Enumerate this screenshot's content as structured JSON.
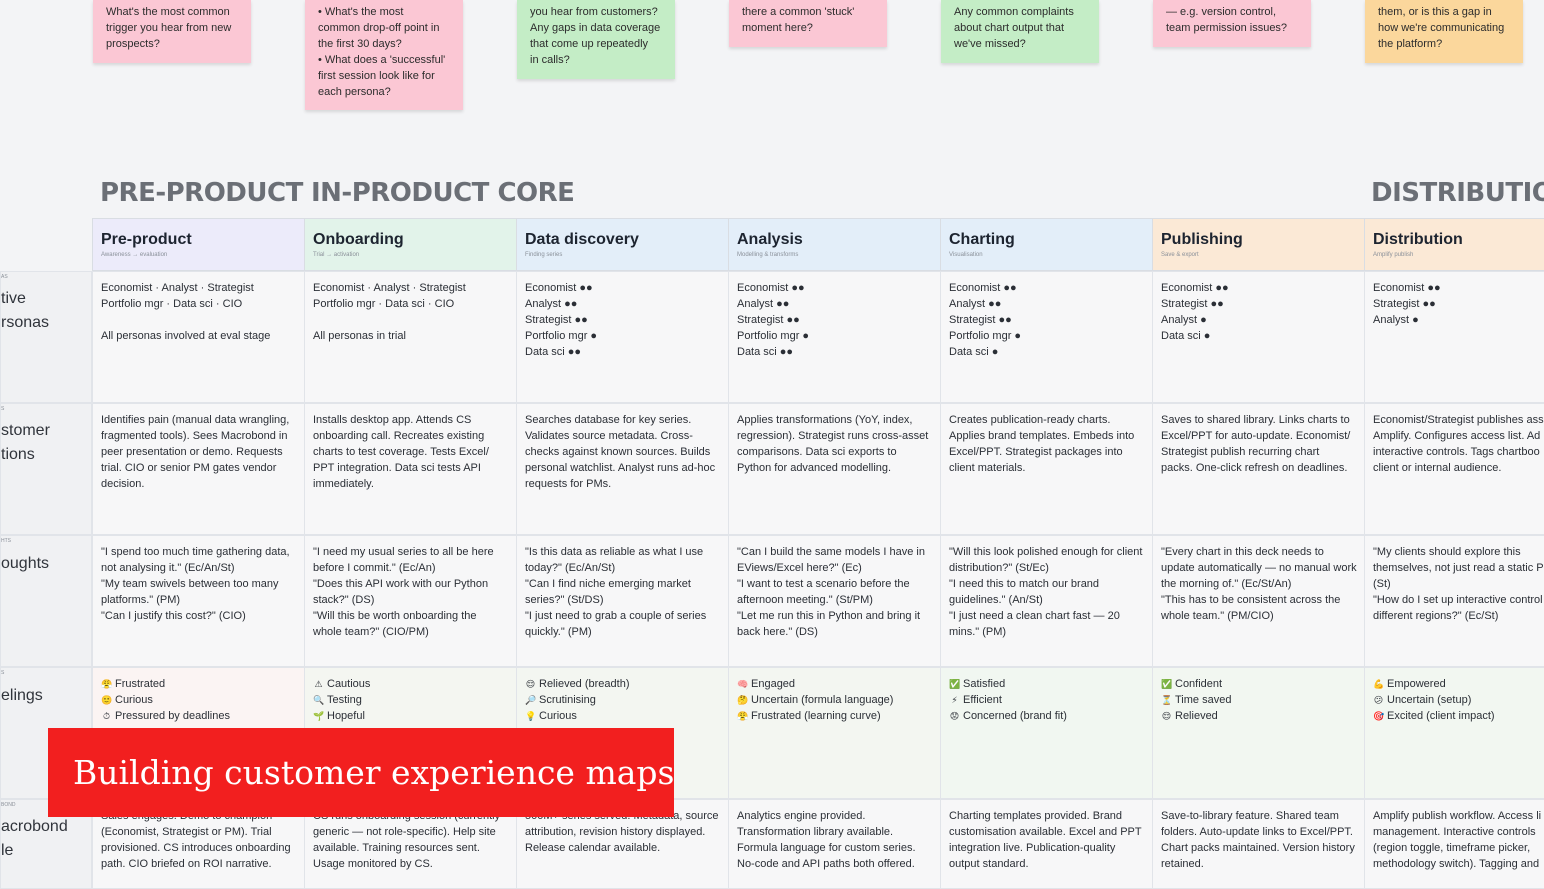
{
  "stickies": [
    {
      "text": "What's the most common\ntrigger you hear from new\nprospects?",
      "color": "#fbc7d4"
    },
    {
      "text": "• What's the most\ncommon drop-off point in\nthe first 30 days?\n• What does a 'successful'\nfirst session look like for\neach persona?",
      "color": "#fbc7d4"
    },
    {
      "text": "you hear from customers?\nAny gaps in data coverage\nthat come up repeatedly\nin calls?",
      "color": "#c4edc6"
    },
    {
      "text": "there a common 'stuck'\nmoment here?",
      "color": "#fbc7d4"
    },
    {
      "text": "Any common complaints\nabout chart output that\nwe've missed?",
      "color": "#c4edc6"
    },
    {
      "text": "— e.g. version control,\nteam permission issues?",
      "color": "#fbc7d4"
    },
    {
      "text": "them, or is this a gap in\nhow we're communicating\nthe platform?",
      "color": "#fbd79c"
    }
  ],
  "sections": {
    "pre_product": "PRE-PRODUCT",
    "in_product": "IN-PRODUCT CORE",
    "distribution": "DISTRIBUTION"
  },
  "columns": [
    {
      "title": "Pre-product",
      "sub": "Awareness → evaluation",
      "bg": "#ecebfa"
    },
    {
      "title": "Onboarding",
      "sub": "Trial → activation",
      "bg": "#e2f3ea"
    },
    {
      "title": "Data discovery",
      "sub": "Finding series",
      "bg": "#e3eef9"
    },
    {
      "title": "Analysis",
      "sub": "Modelling & transforms",
      "bg": "#e3eef9"
    },
    {
      "title": "Charting",
      "sub": "Visualisation",
      "bg": "#e3eef9"
    },
    {
      "title": "Publishing",
      "sub": "Save & export",
      "bg": "#fbe9d6"
    },
    {
      "title": "Distribution",
      "sub": "Amplify publish",
      "bg": "#fbe9d6"
    }
  ],
  "row_labels": [
    {
      "small": "AS",
      "big": "tive\nrsonas"
    },
    {
      "small": "S",
      "big": "stomer\ntions"
    },
    {
      "small": "HTS",
      "big": "oughts"
    },
    {
      "small": "S",
      "big": "elings"
    },
    {
      "small": "BOND",
      "big": "acrobond\nle"
    }
  ],
  "personas": [
    [
      "Economist · Analyst · Strategist",
      "Portfolio mgr · Data sci · CIO",
      "",
      "All personas involved at eval stage"
    ],
    [
      "Economist · Analyst · Strategist",
      "Portfolio mgr · Data sci · CIO",
      "",
      "All personas in trial"
    ],
    [
      "Economist ●●",
      "Analyst ●●",
      "Strategist ●●",
      "Portfolio mgr ●",
      "Data sci ●●"
    ],
    [
      "Economist ●●",
      "Analyst ●●",
      "Strategist ●●",
      "Portfolio mgr ●",
      "Data sci ●●"
    ],
    [
      "Economist ●●",
      "Analyst ●●",
      "Strategist ●●",
      "Portfolio mgr ●",
      "Data sci ●"
    ],
    [
      "Economist ●●",
      "Strategist ●●",
      "Analyst ●",
      "Data sci ●"
    ],
    [
      "Economist ●●",
      "Strategist ●●",
      "Analyst ●"
    ]
  ],
  "actions": [
    [
      "Identifies pain (manual data wrangling,",
      "fragmented tools). Sees Macrobond in",
      "peer presentation or demo. Requests",
      "trial. CIO or senior PM gates vendor",
      "decision."
    ],
    [
      "Installs desktop app. Attends CS",
      "onboarding call. Recreates existing",
      "charts to test coverage. Tests Excel/",
      "PPT integration. Data sci tests API",
      "immediately."
    ],
    [
      "Searches database for key series.",
      "Validates source metadata. Cross-",
      "checks against known sources. Builds",
      "personal watchlist. Analyst runs ad-hoc",
      "requests for PMs."
    ],
    [
      "Applies transformations (YoY, index,",
      "regression). Strategist runs cross-asset",
      "comparisons. Data sci exports to",
      "Python for advanced modelling."
    ],
    [
      "Creates publication-ready charts.",
      "Applies brand templates. Embeds into",
      "Excel/PPT. Strategist packages into",
      "client materials."
    ],
    [
      "Saves to shared library. Links charts to",
      "Excel/PPT for auto-update. Economist/",
      "Strategist publish recurring chart",
      "packs. One-click refresh on deadlines."
    ],
    [
      "Economist/Strategist publishes ass",
      "Amplify. Configures access list. Ad",
      "interactive controls. Tags chartboo",
      "client or internal audience."
    ]
  ],
  "thoughts": [
    [
      "\"I spend too much time gathering data,",
      "not analysing it.\" (Ec/An/St)",
      "\"My team swivels between too many",
      "platforms.\" (PM)",
      "\"Can I justify this cost?\" (CIO)"
    ],
    [
      "\"I need my usual series to all be here",
      "before I commit.\" (Ec/An)",
      "\"Does this API work with our Python",
      "stack?\" (DS)",
      "\"Will this be worth onboarding the",
      "whole team?\" (CIO/PM)"
    ],
    [
      "\"Is this data as reliable as what I use",
      "today?\" (Ec/An/St)",
      "\"Can I find niche emerging market",
      "series?\" (St/DS)",
      "\"I just need to grab a couple of series",
      "quickly.\" (PM)"
    ],
    [
      "\"Can I build the same models I have in",
      "EViews/Excel here?\" (Ec)",
      "\"I want to test a scenario before the",
      "afternoon meeting.\" (St/PM)",
      "\"Let me run this in Python and bring it",
      "back here.\" (DS)"
    ],
    [
      "\"Will this look polished enough for client",
      "distribution?\" (St/Ec)",
      "\"I need this to match our brand",
      "guidelines.\" (An/St)",
      "\"I just need a clean chart fast — 20",
      "mins.\" (PM)"
    ],
    [
      "\"Every chart in this deck needs to",
      "update automatically — no manual work",
      "the morning of.\" (Ec/St/An)",
      "\"This has to be consistent across the",
      "whole team.\" (PM/CIO)"
    ],
    [
      "\"My clients should explore this",
      "themselves, not just read a static P",
      "(St)",
      "\"How do I set up interactive control",
      "different regions?\" (Ec/St)"
    ]
  ],
  "feelings": [
    [
      {
        "icon": "😤",
        "text": "Frustrated"
      },
      {
        "icon": "🙂",
        "text": "Curious"
      },
      {
        "icon": "⏱",
        "text": "Pressured by deadlines"
      }
    ],
    [
      {
        "icon": "⚠",
        "text": "Cautious"
      },
      {
        "icon": "🔍",
        "text": "Testing"
      },
      {
        "icon": "🌱",
        "text": "Hopeful"
      }
    ],
    [
      {
        "icon": "😌",
        "text": "Relieved (breadth)"
      },
      {
        "icon": "🔎",
        "text": "Scrutinising"
      },
      {
        "icon": "💡",
        "text": "Curious"
      }
    ],
    [
      {
        "icon": "🧠",
        "text": "Engaged"
      },
      {
        "icon": "🤔",
        "text": "Uncertain (formula language)"
      },
      {
        "icon": "😤",
        "text": "Frustrated (learning curve)"
      }
    ],
    [
      {
        "icon": "✅",
        "text": "Satisfied"
      },
      {
        "icon": "⚡",
        "text": "Efficient"
      },
      {
        "icon": "😟",
        "text": "Concerned (brand fit)"
      }
    ],
    [
      {
        "icon": "✅",
        "text": "Confident"
      },
      {
        "icon": "⏳",
        "text": "Time saved"
      },
      {
        "icon": "😌",
        "text": "Relieved"
      }
    ],
    [
      {
        "icon": "💪",
        "text": "Empowered"
      },
      {
        "icon": "😕",
        "text": "Uncertain (setup)"
      },
      {
        "icon": "🎯",
        "text": "Excited (client impact)"
      }
    ]
  ],
  "macrobond": [
    [
      "Sales engages. Demo to champion",
      "(Economist, Strategist or PM). Trial",
      "provisioned. CS introduces onboarding",
      "path. CIO briefed on ROI narrative."
    ],
    [
      "CS runs onboarding session (currently",
      "generic — not role-specific). Help site",
      "available. Training resources sent.",
      "Usage monitored by CS."
    ],
    [
      "500M+ series served. Metadata, source",
      "attribution, revision history displayed.",
      "Release calendar available."
    ],
    [
      "Analytics engine provided.",
      "Transformation library available.",
      "Formula language for custom series.",
      "No-code and API paths both offered."
    ],
    [
      "Charting templates provided. Brand",
      "customisation available. Excel and PPT",
      "integration live. Publication-quality",
      "output standard."
    ],
    [
      "Save-to-library feature. Shared team",
      "folders. Auto-update links to Excel/PPT.",
      "Chart packs maintained. Version history",
      "retained."
    ],
    [
      "Amplify publish workflow. Access li",
      "management. Interactive controls",
      "(region toggle, timeframe picker,",
      "methodology switch). Tagging and"
    ]
  ],
  "banner": "Building customer experience maps"
}
